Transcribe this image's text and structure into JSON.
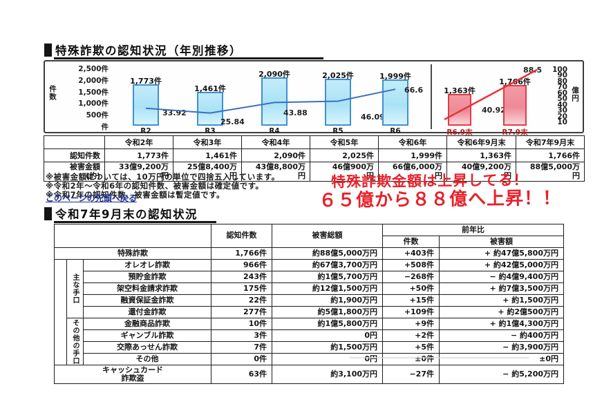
{
  "page": {
    "title1": "特殊詐欺の認知状況（年別推移）",
    "title2": "令和7年9月末の認知状況",
    "back_link": "このページの先頭へ戻る",
    "notes": [
      "※被害金額については、10万円の単位で四捨五入しています。",
      "※令和2年～令和6年の認知件数、被害金額は確定値です。",
      "※令和7年の認知件数、被害金額は暫定値です。"
    ],
    "annotation": {
      "line1": "特殊詐欺金額は上昇してる！",
      "line2": "６５億から８８億へ上昇！！",
      "color": "#e7212a"
    }
  },
  "chart_data": [
    {
      "type": "bar+line",
      "title": "特殊詐欺の認知状況（年別推移）",
      "categories": [
        "R2",
        "R3",
        "R4",
        "R5",
        "R6"
      ],
      "series": [
        {
          "name": "認知件数",
          "type": "bar",
          "values": [
            1773,
            1461,
            2090,
            2025,
            1999
          ],
          "labels": [
            "1,773件",
            "1,461件",
            "2,090件",
            "2,025件",
            "1,999件"
          ]
        },
        {
          "name": "被害金額(億円)",
          "type": "line",
          "values": [
            33.92,
            25.84,
            43.88,
            46.09,
            66.6
          ],
          "labels": [
            "33.92",
            "25.84",
            "43.88",
            "46.09",
            "66.6"
          ]
        }
      ],
      "left_axis": {
        "title": "件数",
        "tick_labels": [
          "2,500件",
          "2,000件",
          "1,500件",
          "1,000件",
          "500件",
          "件"
        ],
        "tick_values": [
          2500,
          2000,
          1500,
          1000,
          500,
          0
        ],
        "ylim": [
          0,
          2500
        ]
      },
      "accent": "blue",
      "bar_color": "#a9e2f6",
      "bar_border": "#3f8fd2",
      "line_color": "#3a6fbf"
    },
    {
      "type": "bar+line",
      "categories": [
        "R6.9末",
        "R7.9末"
      ],
      "series": [
        {
          "name": "認知件数",
          "type": "bar",
          "values": [
            1363,
            1766
          ],
          "labels": [
            "1,363件",
            "1,766件"
          ]
        },
        {
          "name": "被害金額(億円)",
          "type": "line",
          "values": [
            40.92,
            88.5
          ],
          "labels": [
            "40.92",
            "88.5"
          ]
        }
      ],
      "right_axis": {
        "title": "億円",
        "tick_values": [
          100,
          90,
          80,
          70,
          60,
          50,
          40,
          30,
          20,
          10
        ],
        "ylim": [
          0,
          100
        ]
      },
      "accent": "red",
      "bar_color": "#ee8a96",
      "bar_border": "#e23b47",
      "line_color": "#e63438"
    }
  ],
  "summary_table": {
    "col_headers": [
      "令和2年",
      "令和3年",
      "令和4年",
      "令和5年",
      "令和6年",
      "令和6年9月末",
      "令和7年9月末"
    ],
    "row_cases_label": "認知件数",
    "row_cases_values": [
      "1,773件",
      "1,461件",
      "2,090件",
      "2,025件",
      "1,999件",
      "1,363件",
      "1,766件"
    ],
    "row_damage_label": "被害金額\n(約)",
    "row_damage_values": [
      "33億9,200万\n円",
      "25億8,400万\n円",
      "43億8,800万\n円",
      "46億900万\n円",
      "66億6,000万\n円",
      "40億9,200万\n円",
      "88億5,000万\n円"
    ]
  },
  "detail_table": {
    "header": {
      "col_cases": "認知件数",
      "col_damage": "被害総額",
      "col_yoy": "前年比",
      "col_yoy_cases": "件数",
      "col_yoy_damage": "被害額"
    },
    "group1": "主な手口",
    "group2": "その他の手口",
    "rows": [
      {
        "label": "特殊詐欺",
        "cases": "1,766件",
        "damage": "約88億5,000万円",
        "yoy_cases": "+403件",
        "yoy_damage": "+ 約47億5,800万円"
      },
      {
        "label": "オレオレ詐欺",
        "cases": "966件",
        "damage": "約67億3,700万円",
        "yoy_cases": "+508件",
        "yoy_damage": "+ 約42億5,000万円"
      },
      {
        "label": "預貯金詐欺",
        "cases": "243件",
        "damage": "約1億5,700万円",
        "yoy_cases": "−268件",
        "yoy_damage": "− 約4億9,400万円"
      },
      {
        "label": "架空料金請求詐欺",
        "cases": "175件",
        "damage": "約12億1,500万円",
        "yoy_cases": "+50件",
        "yoy_damage": "+ 約7億3,500万円"
      },
      {
        "label": "融資保証金詐欺",
        "cases": "22件",
        "damage": "約1,900万円",
        "yoy_cases": "+15件",
        "yoy_damage": "+ 約1,500万円"
      },
      {
        "label": "還付金詐欺",
        "cases": "277件",
        "damage": "約5億1,800万円",
        "yoy_cases": "+109件",
        "yoy_damage": "+ 約2億500万円"
      },
      {
        "label": "金融商品詐欺",
        "cases": "10件",
        "damage": "約1億5,800万円",
        "yoy_cases": "+9件",
        "yoy_damage": "+ 約1億4,300万円"
      },
      {
        "label": "ギャンブル詐欺",
        "cases": "3件",
        "damage": "0円",
        "yoy_cases": "+2件",
        "yoy_damage": "− 約400万円"
      },
      {
        "label": "交際あっせん詐欺",
        "cases": "7件",
        "damage": "約1,500万円",
        "yoy_cases": "+5件",
        "yoy_damage": "− 約3,900万円"
      },
      {
        "label": "その他",
        "cases": "0件",
        "damage": "0円",
        "yoy_cases": "±0件",
        "yoy_damage": "±0円"
      },
      {
        "label": "キャッシュカード\n詐欺盗",
        "cases": "63件",
        "damage": "約3,100万円",
        "yoy_cases": "−27件",
        "yoy_damage": "− 約5,200万円"
      }
    ]
  }
}
